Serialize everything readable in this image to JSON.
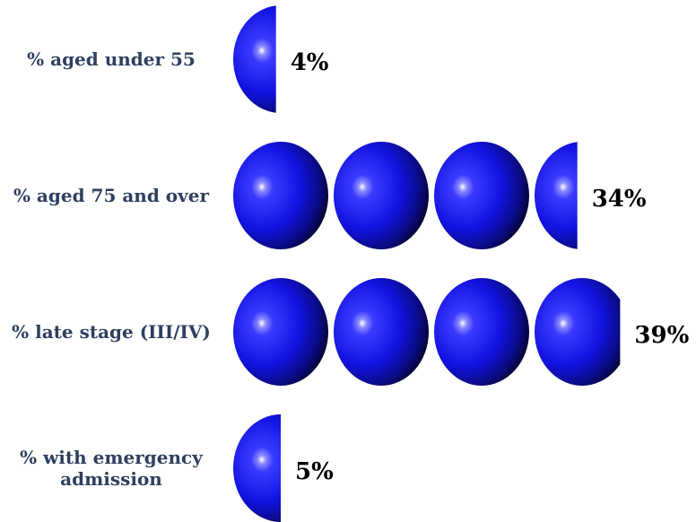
{
  "chart_data": {
    "type": "pictogram-bar",
    "unit_value": 10,
    "categories": [
      [
        "% aged under 55"
      ],
      [
        "% aged 75 and over"
      ],
      [
        "% late stage (III/IV)"
      ],
      [
        "% with emergency",
        "admission"
      ]
    ],
    "values": [
      4,
      34,
      39,
      5
    ],
    "value_labels": [
      "4%",
      "34%",
      "39%",
      "5%"
    ],
    "icon": "blue-sphere",
    "colors": {
      "sphere_light": "#3a3aff",
      "sphere_mid": "#1010d8",
      "sphere_dark": "#050520",
      "label": "#2e3f5f",
      "value": "#000000"
    }
  }
}
